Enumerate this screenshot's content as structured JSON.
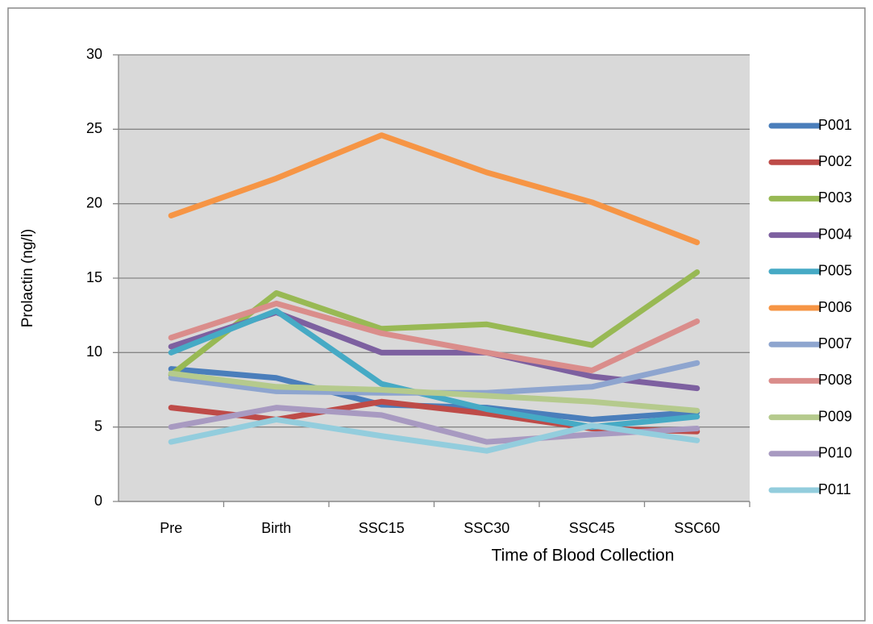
{
  "chart_data": {
    "type": "line",
    "x_label": "Time of Blood Collection",
    "y_label": "Prolactin (ng/l)",
    "categories": [
      "Pre",
      "Birth",
      "SSC15",
      "SSC30",
      "SSC45",
      "SSC60"
    ],
    "ylim": [
      0,
      30
    ],
    "yticks": [
      0,
      5,
      10,
      15,
      20,
      25,
      30
    ],
    "grid": true,
    "legend": "right",
    "series": [
      {
        "name": "P001",
        "color": "#4a7ebb",
        "values": [
          8.9,
          8.3,
          6.5,
          6.3,
          5.5,
          6.0
        ]
      },
      {
        "name": "P002",
        "color": "#be4b48",
        "values": [
          6.3,
          5.5,
          6.7,
          5.9,
          4.9,
          4.7
        ]
      },
      {
        "name": "P003",
        "color": "#98b954",
        "values": [
          8.5,
          14.0,
          11.6,
          11.9,
          10.5,
          15.4
        ]
      },
      {
        "name": "P004",
        "color": "#7d60a0",
        "values": [
          10.4,
          12.7,
          10.0,
          10.0,
          8.4,
          7.6
        ]
      },
      {
        "name": "P005",
        "color": "#46aac5",
        "values": [
          10.0,
          12.8,
          7.9,
          6.2,
          5.0,
          5.7
        ]
      },
      {
        "name": "P006",
        "color": "#f69545",
        "values": [
          19.2,
          21.7,
          24.6,
          22.1,
          20.1,
          17.4
        ]
      },
      {
        "name": "P007",
        "color": "#8ea5cf",
        "values": [
          8.3,
          7.4,
          7.3,
          7.3,
          7.7,
          9.3
        ]
      },
      {
        "name": "P008",
        "color": "#da8d8b",
        "values": [
          11.0,
          13.3,
          11.3,
          10.0,
          8.8,
          12.1
        ]
      },
      {
        "name": "P009",
        "color": "#b5ca8d",
        "values": [
          8.6,
          7.7,
          7.5,
          7.1,
          6.7,
          6.1
        ]
      },
      {
        "name": "P010",
        "color": "#a89ac1",
        "values": [
          5.0,
          6.3,
          5.8,
          4.0,
          4.5,
          4.9
        ]
      },
      {
        "name": "P011",
        "color": "#93cddd",
        "values": [
          4.0,
          5.5,
          4.4,
          3.4,
          5.1,
          4.1
        ]
      }
    ]
  }
}
